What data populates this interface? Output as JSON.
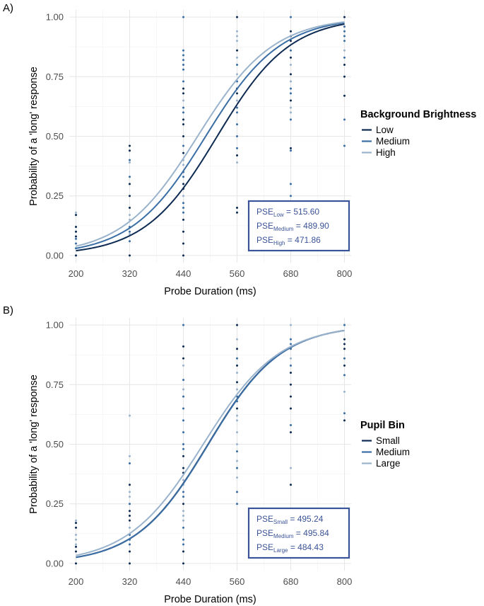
{
  "chart_data": [
    {
      "panel_label": "A)",
      "type": "line",
      "xlabel": "Probe Duration (ms)",
      "ylabel": "Probability of a 'long' response",
      "xlim": [
        185,
        815
      ],
      "ylim": [
        -0.03,
        1.03
      ],
      "x_ticks": [
        200,
        320,
        440,
        560,
        680,
        800
      ],
      "x_tick_labels": [
        "200",
        "320",
        "440",
        "560",
        "680",
        "800"
      ],
      "y_ticks": [
        0,
        0.25,
        0.5,
        0.75,
        1.0
      ],
      "y_tick_labels": [
        "0.00",
        "0.25",
        "0.50",
        "0.75",
        "1.00"
      ],
      "grid": true,
      "legend": {
        "title": "Background Brightness",
        "placement": "right",
        "entries": [
          "Low",
          "Medium",
          "High"
        ]
      },
      "series": [
        {
          "name": "Low",
          "color": "#0d2b52",
          "pse": 515.6,
          "slope": 0.0123
        },
        {
          "name": "Medium",
          "color": "#3a6ea5",
          "pse": 489.9,
          "slope": 0.012
        },
        {
          "name": "High",
          "color": "#9ab3cc",
          "pse": 471.86,
          "slope": 0.0118
        }
      ],
      "points": [
        {
          "x": 200,
          "values": [
            0.0,
            0.03,
            0.05,
            0.07,
            0.08,
            0.1,
            0.12,
            0.17,
            0.18
          ]
        },
        {
          "x": 320,
          "values": [
            0.0,
            0.06,
            0.09,
            0.1,
            0.12,
            0.15,
            0.17,
            0.2,
            0.25,
            0.3,
            0.33,
            0.39,
            0.4,
            0.44,
            0.46
          ]
        },
        {
          "x": 440,
          "values": [
            0.0,
            0.05,
            0.1,
            0.15,
            0.18,
            0.2,
            0.22,
            0.25,
            0.28,
            0.3,
            0.33,
            0.35,
            0.38,
            0.4,
            0.43,
            0.46,
            0.5,
            0.55,
            0.57,
            0.6,
            0.62,
            0.65,
            0.68,
            0.7,
            0.73,
            0.78,
            0.8,
            0.82,
            0.84,
            0.86,
            1.0
          ]
        },
        {
          "x": 560,
          "values": [
            0.18,
            0.2,
            0.39,
            0.42,
            0.45,
            0.5,
            0.55,
            0.6,
            0.62,
            0.65,
            0.68,
            0.7,
            0.73,
            0.76,
            0.8,
            0.83,
            0.86,
            0.9,
            0.92,
            0.94,
            1.0
          ]
        },
        {
          "x": 680,
          "values": [
            0.25,
            0.3,
            0.44,
            0.45,
            0.57,
            0.6,
            0.62,
            0.65,
            0.68,
            0.7,
            0.73,
            0.76,
            0.8,
            0.83,
            0.86,
            0.9,
            0.92,
            0.94,
            1.0
          ]
        },
        {
          "x": 800,
          "values": [
            0.46,
            0.57,
            0.67,
            0.75,
            0.8,
            0.83,
            0.86,
            0.9,
            0.92,
            0.94,
            0.96,
            1.0
          ]
        }
      ],
      "pse_box": {
        "prefix": "PSE",
        "entries": [
          {
            "sub": "Low",
            "value": "515.60"
          },
          {
            "sub": "Medium",
            "value": "489.90"
          },
          {
            "sub": "High",
            "value": "471.86"
          }
        ]
      }
    },
    {
      "panel_label": "B)",
      "type": "line",
      "xlabel": "Probe Duration (ms)",
      "ylabel": "Probability of a 'long' response",
      "xlim": [
        185,
        815
      ],
      "ylim": [
        -0.03,
        1.03
      ],
      "x_ticks": [
        200,
        320,
        440,
        560,
        680,
        800
      ],
      "x_tick_labels": [
        "200",
        "320",
        "440",
        "560",
        "680",
        "800"
      ],
      "y_ticks": [
        0,
        0.25,
        0.5,
        0.75,
        1.0
      ],
      "y_tick_labels": [
        "0.00",
        "0.25",
        "0.50",
        "0.75",
        "1.00"
      ],
      "grid": true,
      "legend": {
        "title": "Pupil Bin",
        "placement": "right",
        "entries": [
          "Small",
          "Medium",
          "Large"
        ]
      },
      "series": [
        {
          "name": "Small",
          "color": "#0d2b52",
          "pse": 495.24,
          "slope": 0.0123
        },
        {
          "name": "Medium",
          "color": "#3a6ea5",
          "pse": 495.84,
          "slope": 0.0123
        },
        {
          "name": "Large",
          "color": "#9ab3cc",
          "pse": 484.43,
          "slope": 0.0118
        }
      ],
      "points": [
        {
          "x": 200,
          "values": [
            0.0,
            0.05,
            0.07,
            0.08,
            0.1,
            0.12,
            0.15,
            0.17,
            0.18
          ]
        },
        {
          "x": 320,
          "values": [
            0.0,
            0.05,
            0.08,
            0.1,
            0.12,
            0.15,
            0.18,
            0.2,
            0.22,
            0.25,
            0.28,
            0.3,
            0.33,
            0.42,
            0.45,
            0.62
          ]
        },
        {
          "x": 440,
          "values": [
            0.0,
            0.05,
            0.08,
            0.1,
            0.15,
            0.18,
            0.2,
            0.22,
            0.25,
            0.28,
            0.3,
            0.33,
            0.35,
            0.38,
            0.4,
            0.45,
            0.48,
            0.5,
            0.55,
            0.6,
            0.65,
            0.7,
            0.73,
            0.77,
            0.83,
            0.86,
            0.91,
            1.0
          ]
        },
        {
          "x": 560,
          "values": [
            0.25,
            0.3,
            0.36,
            0.4,
            0.43,
            0.47,
            0.5,
            0.55,
            0.6,
            0.62,
            0.65,
            0.68,
            0.7,
            0.73,
            0.76,
            0.8,
            0.83,
            0.86,
            0.9,
            0.94,
            1.0
          ]
        },
        {
          "x": 680,
          "values": [
            0.33,
            0.4,
            0.55,
            0.58,
            0.65,
            0.7,
            0.75,
            0.8,
            0.83,
            0.86,
            0.9,
            0.92,
            0.94,
            1.0
          ]
        },
        {
          "x": 800,
          "values": [
            0.6,
            0.63,
            0.72,
            0.79,
            0.83,
            0.86,
            0.9,
            0.92,
            0.94,
            1.0
          ]
        }
      ],
      "pse_box": {
        "prefix": "PSE",
        "entries": [
          {
            "sub": "Small",
            "value": "495.24"
          },
          {
            "sub": "Medium",
            "value": "495.84"
          },
          {
            "sub": "Large",
            "value": "484.43"
          }
        ]
      }
    }
  ]
}
